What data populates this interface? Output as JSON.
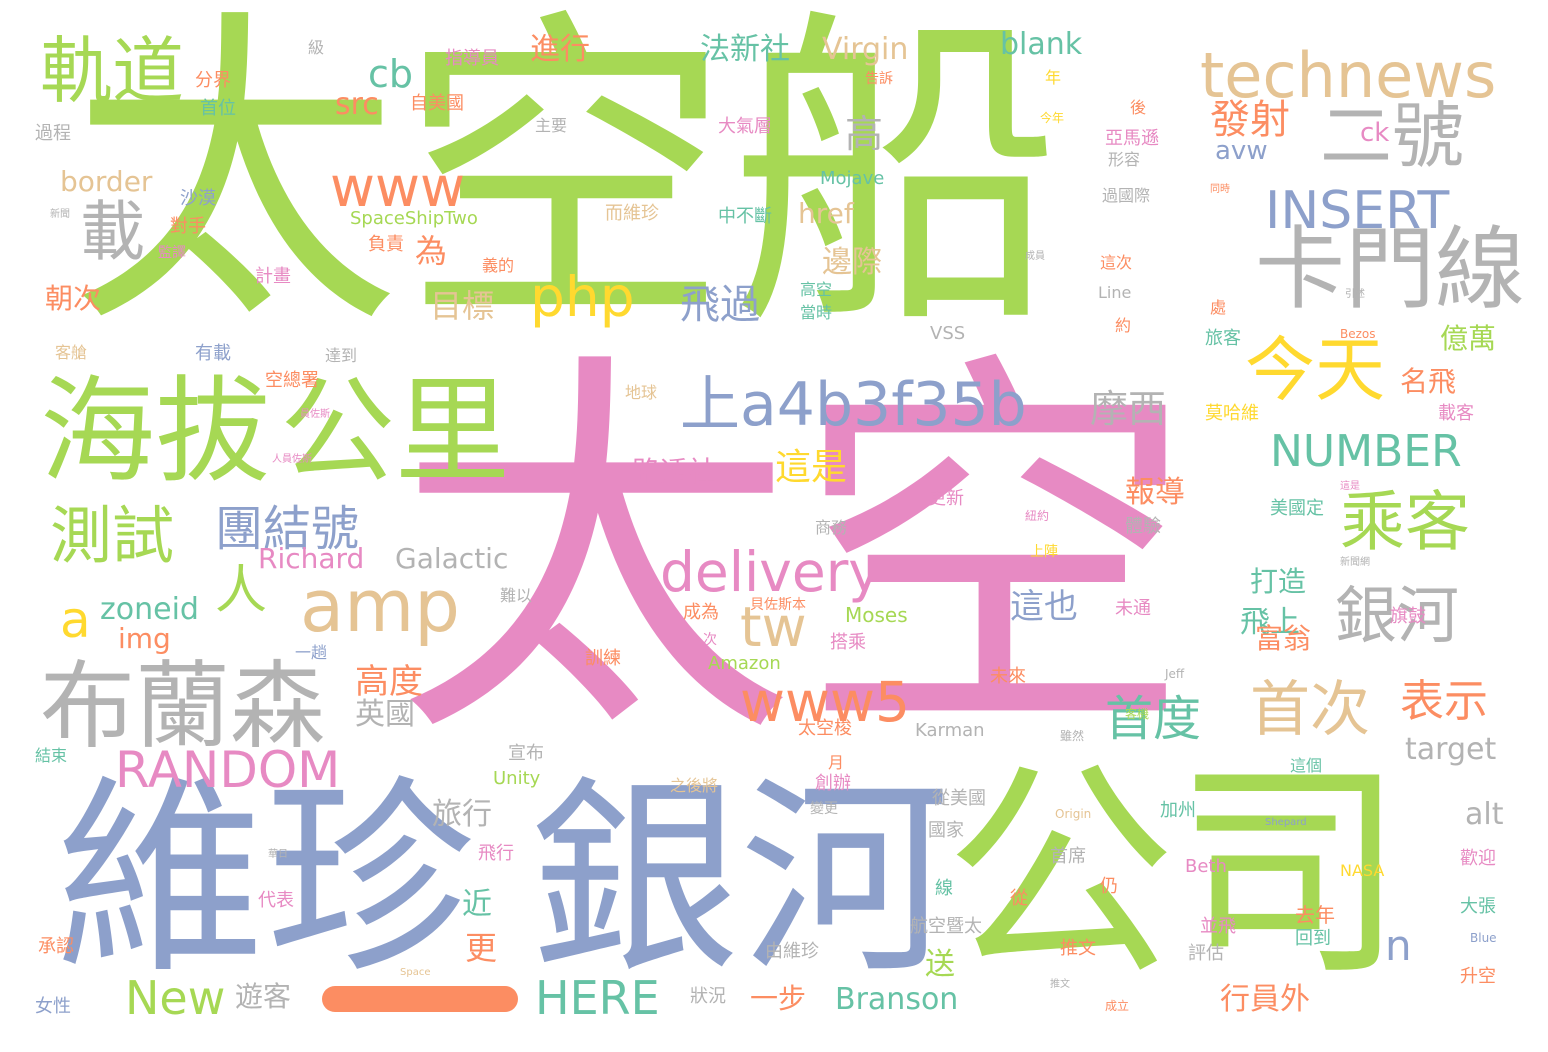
{
  "colors": {
    "green": "#a6d854",
    "pink": "#e78ac3",
    "blue": "#8da0cb",
    "teal": "#66c2a5",
    "orange": "#fc8d62",
    "yellow": "#ffd92f",
    "tan": "#e5c494",
    "gray": "#b3b3b3"
  },
  "words": [
    "太空船",
    "太空",
    "公司",
    "維珍",
    "銀河",
    "海拔",
    "公里",
    "布蘭森",
    "卡門線",
    "technews",
    "軌道",
    "二號",
    "載",
    "www",
    "amp",
    "php",
    "delivery",
    "tw",
    "www5",
    "RANDOM",
    "上a4b3f35b",
    "今天",
    "乘客",
    "測試",
    "團結號",
    "人",
    "a",
    "zoneid",
    "銀河",
    "首次",
    "首度",
    "表示",
    "New",
    "HERE",
    "Branson",
    "INSERT",
    "NUMBER",
    "摩西",
    "這是",
    "飛過",
    "目標",
    "高",
    "發射",
    "cb",
    "src",
    "進行",
    "法新社",
    "Virgin",
    "blank",
    "border",
    "朝次",
    "為",
    "邊際",
    "Richard",
    "Galactic",
    "img",
    "高度",
    "英國",
    "旅行",
    "近",
    "更",
    "遊客",
    "一步",
    "行員外",
    "送",
    "這也",
    "飛上",
    "富翁",
    "打造",
    "報導",
    "路透社",
    "億萬",
    "名飛",
    "avw",
    "ck",
    "href",
    "n",
    "target",
    "alt",
    "分界",
    "首位",
    "自美國",
    "指導員",
    "過程",
    "主要",
    "沙漠",
    "對手",
    "計畫",
    "客艙",
    "有載",
    "達到",
    "空總署",
    "地球",
    "更新",
    "商務",
    "體驗",
    "紐約",
    "上陣",
    "未通",
    "Moses",
    "Amazon",
    "Jeff",
    "未來",
    "太空梭",
    "Karman",
    "宣布",
    "Unity",
    "月",
    "之後將",
    "創辦",
    "從美國",
    "國家",
    "首席",
    "仍",
    "加州",
    "Beth",
    "Shepard",
    "NASA",
    "歡迎",
    "大張",
    "去年",
    "並飛",
    "回到",
    "推文",
    "評估",
    "升空",
    "成立",
    "狀況",
    "由維珍",
    "航空暨太",
    "線",
    "代表",
    "飛行",
    "承認",
    "女性",
    "結束",
    "一趟",
    "訓練",
    "成為",
    "貝佐斯本",
    "搭乘",
    "Mojave",
    "SpaceShipTwo",
    "負責",
    "而維珍",
    "中不斷",
    "大氣層",
    "後",
    "亞馬遜",
    "過國際",
    "這次",
    "Line",
    "約",
    "處",
    "旅客",
    "VSS",
    "Bezos",
    "莫哈維",
    "載客",
    "美國定",
    "旗鼓",
    "這個",
    "Origin",
    "Blue",
    "Space",
    "形容",
    "年",
    "級",
    "今年",
    "高空",
    "當時",
    "義的",
    "監譯",
    "難以",
    "雖然",
    "客機",
    "新聞",
    "引述",
    "人員佐斯",
    "員佐斯",
    "告訴",
    "新聞網",
    "同時",
    "這是",
    "從",
    "變更",
    "成員",
    "次",
    "華日",
    "推文"
  ]
}
